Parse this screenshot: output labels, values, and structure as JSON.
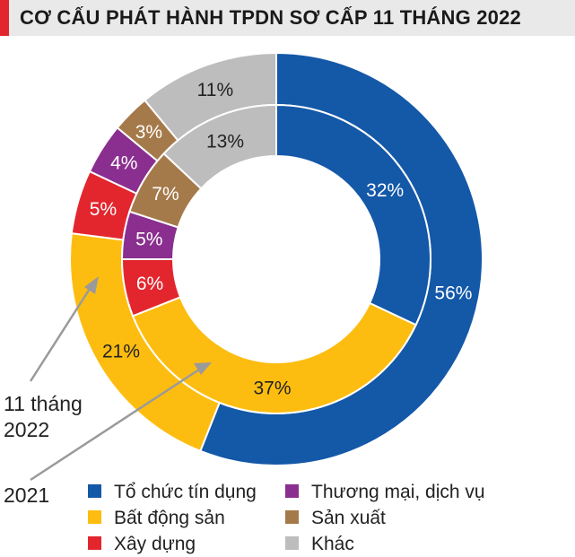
{
  "title": "CƠ CẤU PHÁT HÀNH TPDN SƠ CẤP 11 THÁNG 2022",
  "annotations": {
    "outer_ring": [
      "11 tháng",
      "2022"
    ],
    "inner_ring": "2021"
  },
  "chart_data": {
    "type": "pie",
    "variant": "nested-donut",
    "categories": [
      "Tổ chức tín dụng",
      "Bất động sản",
      "Xây dựng",
      "Thương mại, dịch vụ",
      "Sản xuất",
      "Khác"
    ],
    "colors": [
      "#1458a8",
      "#fdbd10",
      "#e3262e",
      "#8a2f8f",
      "#a57a4a",
      "#bdbdbd"
    ],
    "series": [
      {
        "name": "11 tháng 2022",
        "ring": "outer",
        "values": [
          56,
          21,
          5,
          4,
          3,
          11
        ],
        "labels": [
          "56%",
          "21%",
          "5%",
          "4%",
          "3%",
          "11%"
        ]
      },
      {
        "name": "2021",
        "ring": "inner",
        "values": [
          32,
          37,
          6,
          5,
          7,
          13
        ],
        "labels": [
          "32%",
          "37%",
          "6%",
          "5%",
          "7%",
          "13%"
        ]
      }
    ],
    "legend_placement": "bottom"
  }
}
